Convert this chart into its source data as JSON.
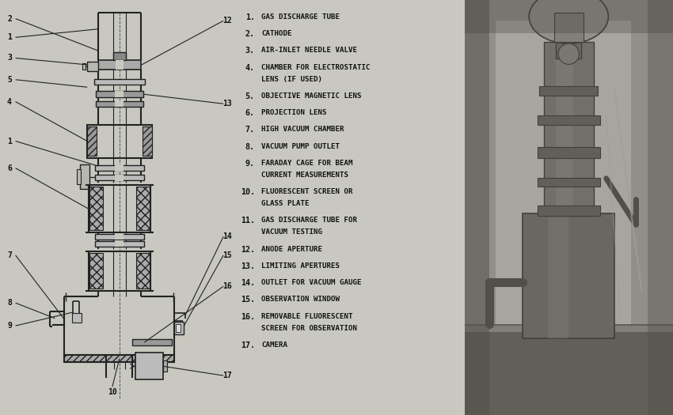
{
  "bg_color": "#c8c8c0",
  "legend_items": [
    {
      "num": "1.",
      "text": "GAS DISCHARGE TUBE",
      "lines": 1
    },
    {
      "num": "2.",
      "text": "CATHODE",
      "lines": 1
    },
    {
      "num": "3.",
      "text": "AIR-INLET NEEDLE VALVE",
      "lines": 1
    },
    {
      "num": "4.",
      "text": "CHAMBER FOR ELECTROSTATIC",
      "text2": "LENS (IF USED)",
      "lines": 2
    },
    {
      "num": "5.",
      "text": "OBJECTIVE MAGNETIC LENS",
      "lines": 1
    },
    {
      "num": "6.",
      "text": "PROJECTION LENS",
      "lines": 1
    },
    {
      "num": "7.",
      "text": "HIGH VACUUM CHAMBER",
      "lines": 1
    },
    {
      "num": "8.",
      "text": "VACUUM PUMP OUTLET",
      "lines": 1
    },
    {
      "num": "9.",
      "text": "FARADAY CAGE FOR BEAM",
      "text2": "CURRENT MEASUREMENTS",
      "lines": 2
    },
    {
      "num": "10.",
      "text": "FLUORESCENT SCREEN OR",
      "text2": "GLASS PLATE",
      "lines": 2
    },
    {
      "num": "11.",
      "text": "GAS DISCHARGE TUBE FOR",
      "text2": "VACUUM TESTING",
      "lines": 2
    },
    {
      "num": "12.",
      "text": "ANODE APERTURE",
      "lines": 1
    },
    {
      "num": "13.",
      "text": "LIMITING APERTURES",
      "lines": 1
    },
    {
      "num": "14.",
      "text": "OUTLET FOR VACUUM GAUGE",
      "lines": 1
    },
    {
      "num": "15.",
      "text": "OBSERVATION WINDOW",
      "lines": 1
    },
    {
      "num": "16.",
      "text": "REMOVABLE FLUORESCENT",
      "text2": "SCREEN FOR OBSERVATION",
      "lines": 2
    },
    {
      "num": "17.",
      "text": "CAMERA",
      "lines": 1
    }
  ],
  "line_color": "#222222",
  "text_color": "#111111",
  "lbl_left": [
    {
      "n": "2",
      "fx": 0.03,
      "fy": 0.955
    },
    {
      "n": "1",
      "fx": 0.03,
      "fy": 0.905
    },
    {
      "n": "3",
      "fx": 0.03,
      "fy": 0.855
    },
    {
      "n": "5",
      "fx": 0.03,
      "fy": 0.8
    },
    {
      "n": "4",
      "fx": 0.03,
      "fy": 0.74
    },
    {
      "n": "1",
      "fx": 0.03,
      "fy": 0.66
    },
    {
      "n": "6",
      "fx": 0.03,
      "fy": 0.59
    },
    {
      "n": "7",
      "fx": 0.03,
      "fy": 0.39
    },
    {
      "n": "8",
      "fx": 0.03,
      "fy": 0.275
    },
    {
      "n": "9",
      "fx": 0.03,
      "fy": 0.22
    }
  ],
  "lbl_right": [
    {
      "n": "12",
      "fx": 0.97,
      "fy": 0.95
    },
    {
      "n": "13",
      "fx": 0.97,
      "fy": 0.74
    },
    {
      "n": "14",
      "fx": 0.97,
      "fy": 0.43
    },
    {
      "n": "15",
      "fx": 0.97,
      "fy": 0.385
    },
    {
      "n": "16",
      "fx": 0.97,
      "fy": 0.31
    },
    {
      "n": "17",
      "fx": 0.97,
      "fy": 0.095
    }
  ]
}
